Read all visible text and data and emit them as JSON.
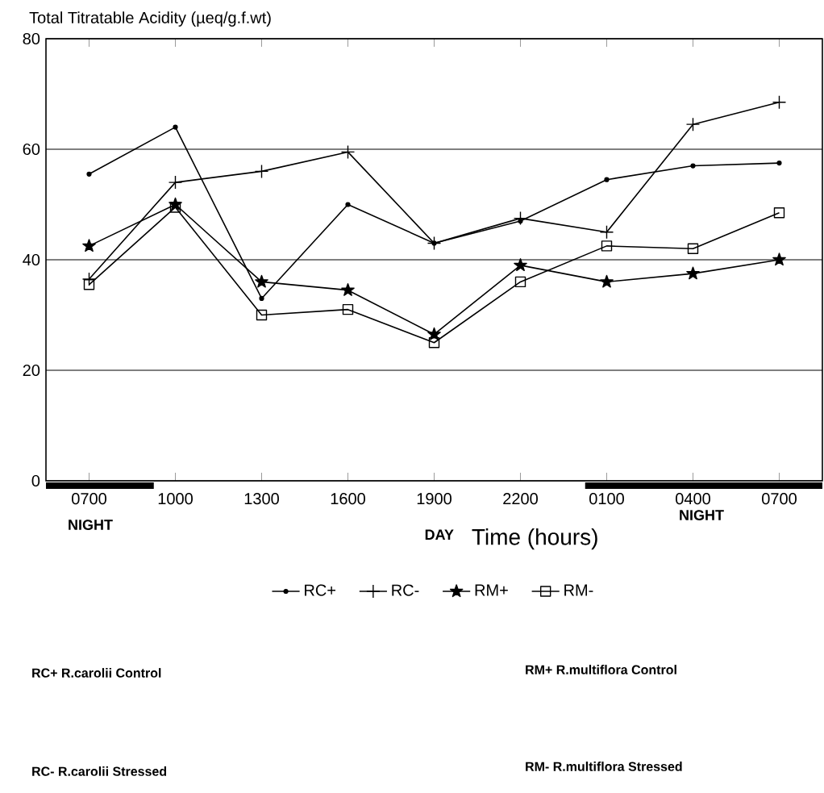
{
  "chart_data": {
    "type": "line",
    "ylabel": "Total Titratable Acidity (µeq/g.f.wt)",
    "xlabel": "Time (hours)",
    "categories": [
      "0700",
      "1000",
      "1300",
      "1600",
      "1900",
      "2200",
      "0100",
      "0400",
      "0700"
    ],
    "ylim": [
      0,
      80
    ],
    "yticks": [
      0,
      20,
      40,
      60,
      80
    ],
    "grid": "y",
    "legend": "bottom",
    "series": [
      {
        "name": "RC+",
        "color": "#000000",
        "marker": "circle",
        "values": [
          55.5,
          64,
          33,
          50,
          43,
          47,
          54.5,
          57,
          57.5
        ]
      },
      {
        "name": "RC-",
        "color": "#000000",
        "marker": "cross",
        "values": [
          36.5,
          54,
          56,
          59.5,
          43,
          47.5,
          45,
          64.5,
          68.5
        ]
      },
      {
        "name": "RM+",
        "color": "#000000",
        "marker": "star",
        "values": [
          42.5,
          50,
          36,
          34.5,
          26.5,
          39,
          36,
          37.5,
          40
        ]
      },
      {
        "name": "RM-",
        "color": "#000000",
        "marker": "square",
        "values": [
          35.5,
          49.5,
          30,
          31,
          25,
          36,
          42.5,
          42,
          48.5
        ]
      }
    ],
    "annotations": [
      "NIGHT",
      "DAY",
      "NIGHT",
      "RC+ R.carolii Control",
      "RM+ R.multiflora Control",
      "RC- R.carolii Stressed",
      "RM- R.multiflora Stressed"
    ]
  }
}
